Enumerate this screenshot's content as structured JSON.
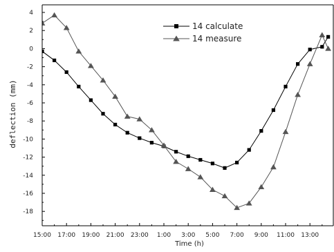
{
  "chart_data": {
    "type": "line",
    "xlabel": "Time (h)",
    "ylabel": "deflection (mm)",
    "ylim": [
      -19,
      4.5
    ],
    "y_ticks": [
      4,
      2,
      0,
      -2,
      -4,
      -6,
      -8,
      -10,
      -12,
      -14,
      -16,
      -18
    ],
    "x_ticks": [
      "15:00",
      "17:00",
      "19:00",
      "21:00",
      "23:00",
      "1:00",
      "3:00",
      "5:00",
      "7:00",
      "9:00",
      "11:00",
      "13:00"
    ],
    "x_index_range": [
      0,
      23.5
    ],
    "legend_position": "top-center",
    "grid": false,
    "series": [
      {
        "name": "14 calculate",
        "marker": "square",
        "x": [
          0,
          1,
          2,
          3,
          4,
          5,
          6,
          7,
          8,
          9,
          10,
          11,
          12,
          13,
          14,
          15,
          16,
          17,
          18,
          19,
          20,
          21,
          22,
          23,
          23.5
        ],
        "values": [
          -0.3,
          -1.3,
          -2.6,
          -4.2,
          -5.7,
          -7.2,
          -8.4,
          -9.3,
          -9.9,
          -10.4,
          -10.8,
          -11.4,
          -11.9,
          -12.3,
          -12.7,
          -13.2,
          -12.6,
          -11.2,
          -9.1,
          -6.8,
          -4.2,
          -1.7,
          -0.1,
          0.2,
          1.3
        ],
        "color": "#000000"
      },
      {
        "name": "14 measure",
        "marker": "triangle",
        "x": [
          0,
          1,
          2,
          3,
          4,
          5,
          6,
          7,
          8,
          9,
          10,
          11,
          12,
          13,
          14,
          15,
          16,
          17,
          18,
          19,
          20,
          21,
          22,
          23,
          23.5
        ],
        "values": [
          2.8,
          3.7,
          2.3,
          -0.3,
          -1.9,
          -3.5,
          -5.3,
          -7.5,
          -7.8,
          -9.0,
          -10.7,
          -12.5,
          -13.3,
          -14.2,
          -15.6,
          -16.3,
          -17.6,
          -17.1,
          -15.3,
          -13.1,
          -9.2,
          -5.1,
          -1.7,
          1.5,
          0
        ]
      }
    ]
  }
}
